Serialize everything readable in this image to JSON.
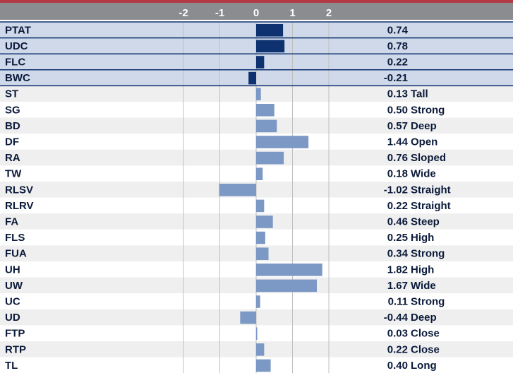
{
  "colors": {
    "top_rule": "#b13a45",
    "header_bg": "#8a8c90",
    "header_text": "#ffffff",
    "highlight_row_bg": "#cfd9ea",
    "stripe_bg": "#efefef",
    "plain_bg": "#ffffff",
    "highlight_bar": "#0e3170",
    "trait_bar": "#7c98c5",
    "text": "#0b1a3a",
    "grid": "#bfbfbf"
  },
  "chart_data": {
    "type": "bar",
    "orientation": "horizontal",
    "xlim": [
      -2,
      2
    ],
    "ticks": [
      -2,
      -1,
      0,
      1,
      2
    ],
    "tick_labels": [
      "-2",
      "-1",
      "0",
      "1",
      "2"
    ],
    "grid": true,
    "rows": [
      {
        "label": "PTAT",
        "value": 0.74,
        "value_text": "0.74",
        "descriptor": "",
        "highlight": true
      },
      {
        "label": "UDC",
        "value": 0.78,
        "value_text": "0.78",
        "descriptor": "",
        "highlight": true
      },
      {
        "label": "FLC",
        "value": 0.22,
        "value_text": "0.22",
        "descriptor": "",
        "highlight": true
      },
      {
        "label": "BWC",
        "value": -0.21,
        "value_text": "-0.21",
        "descriptor": "",
        "highlight": true
      },
      {
        "label": "ST",
        "value": 0.13,
        "value_text": "0.13",
        "descriptor": "Tall",
        "highlight": false
      },
      {
        "label": "SG",
        "value": 0.5,
        "value_text": "0.50",
        "descriptor": "Strong",
        "highlight": false
      },
      {
        "label": "BD",
        "value": 0.57,
        "value_text": "0.57",
        "descriptor": "Deep",
        "highlight": false
      },
      {
        "label": "DF",
        "value": 1.44,
        "value_text": "1.44",
        "descriptor": "Open",
        "highlight": false
      },
      {
        "label": "RA",
        "value": 0.76,
        "value_text": "0.76",
        "descriptor": "Sloped",
        "highlight": false
      },
      {
        "label": "TW",
        "value": 0.18,
        "value_text": "0.18",
        "descriptor": "Wide",
        "highlight": false
      },
      {
        "label": "RLSV",
        "value": -1.02,
        "value_text": "-1.02",
        "descriptor": "Straight",
        "highlight": false
      },
      {
        "label": "RLRV",
        "value": 0.22,
        "value_text": "0.22",
        "descriptor": "Straight",
        "highlight": false
      },
      {
        "label": "FA",
        "value": 0.46,
        "value_text": "0.46",
        "descriptor": "Steep",
        "highlight": false
      },
      {
        "label": "FLS",
        "value": 0.25,
        "value_text": "0.25",
        "descriptor": "High",
        "highlight": false
      },
      {
        "label": "FUA",
        "value": 0.34,
        "value_text": "0.34",
        "descriptor": "Strong",
        "highlight": false
      },
      {
        "label": "UH",
        "value": 1.82,
        "value_text": "1.82",
        "descriptor": "High",
        "highlight": false
      },
      {
        "label": "UW",
        "value": 1.67,
        "value_text": "1.67",
        "descriptor": "Wide",
        "highlight": false
      },
      {
        "label": "UC",
        "value": 0.11,
        "value_text": "0.11",
        "descriptor": "Strong",
        "highlight": false
      },
      {
        "label": "UD",
        "value": -0.44,
        "value_text": "-0.44",
        "descriptor": "Deep",
        "highlight": false
      },
      {
        "label": "FTP",
        "value": 0.03,
        "value_text": "0.03",
        "descriptor": "Close",
        "highlight": false
      },
      {
        "label": "RTP",
        "value": 0.22,
        "value_text": "0.22",
        "descriptor": "Close",
        "highlight": false
      },
      {
        "label": "TL",
        "value": 0.4,
        "value_text": "0.40",
        "descriptor": "Long",
        "highlight": false
      }
    ]
  }
}
